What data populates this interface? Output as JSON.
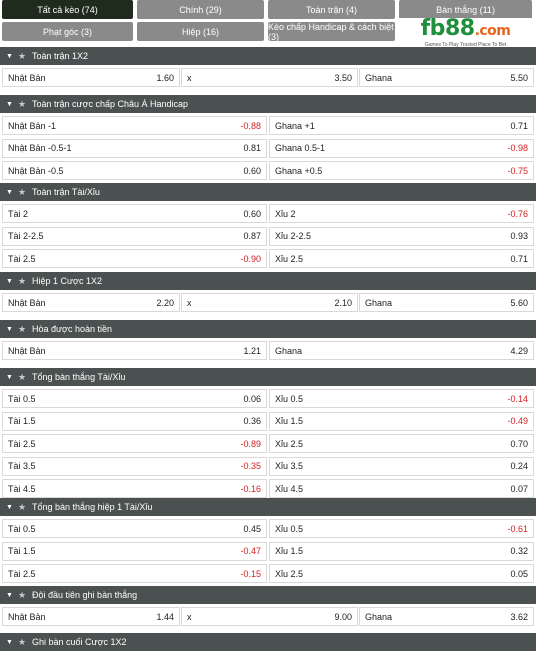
{
  "tabs": [
    {
      "label": "Tất cả kèo (74)",
      "active": true
    },
    {
      "label": "Chính (29)"
    },
    {
      "label": "Toàn trận (4)"
    },
    {
      "label": "Bàn thắng (11)"
    },
    {
      "label": "Phạt góc (3)"
    },
    {
      "label": "Hiệp (16)"
    },
    {
      "label": "Kèo chấp Handicap & cách biệt (3)"
    }
  ],
  "logo": {
    "text_fb": "fb",
    "text_88": "88",
    "text_dot": ".com",
    "tagline": "Games To Play   Trusted Place To Bet"
  },
  "sections": [
    {
      "title": "Toàn trận 1X2",
      "rows": [
        [
          {
            "label": "Nhật Bản",
            "odd": "1.60"
          },
          {
            "label": "x",
            "odd": "3.50"
          },
          {
            "label": "Ghana",
            "odd": "5.50"
          }
        ]
      ]
    },
    {
      "title": "Toàn trận cược chấp Châu Á Handicap",
      "rows": [
        [
          {
            "label": "Nhật Bản -1",
            "odd": "-0.88"
          },
          {
            "label": "Ghana +1",
            "odd": "0.71"
          }
        ],
        [
          {
            "label": "Nhật Bản -0.5-1",
            "odd": "0.81"
          },
          {
            "label": "Ghana 0.5-1",
            "odd": "-0.98"
          }
        ],
        [
          {
            "label": "Nhật Bản -0.5",
            "odd": "0.60"
          },
          {
            "label": "Ghana +0.5",
            "odd": "-0.75"
          }
        ]
      ]
    },
    {
      "title": "Toàn trận Tài/Xỉu",
      "rows": [
        [
          {
            "label": "Tài 2",
            "odd": "0.60"
          },
          {
            "label": "Xỉu 2",
            "odd": "-0.76"
          }
        ],
        [
          {
            "label": "Tài 2-2.5",
            "odd": "0.87"
          },
          {
            "label": "Xỉu 2-2.5",
            "odd": "0.93"
          }
        ],
        [
          {
            "label": "Tài 2.5",
            "odd": "-0.90"
          },
          {
            "label": "Xỉu 2.5",
            "odd": "0.71"
          }
        ]
      ]
    },
    {
      "title": "Hiệp 1 Cược 1X2",
      "rows": [
        [
          {
            "label": "Nhật Bản",
            "odd": "2.20"
          },
          {
            "label": "x",
            "odd": "2.10"
          },
          {
            "label": "Ghana",
            "odd": "5.60"
          }
        ]
      ]
    },
    {
      "title": "Hòa được hoàn tiền",
      "rows": [
        [
          {
            "label": "Nhật Bản",
            "odd": "1.21"
          },
          {
            "label": "Ghana",
            "odd": "4.29"
          }
        ]
      ]
    },
    {
      "title": "Tổng bàn thắng Tài/Xỉu",
      "rows": [
        [
          {
            "label": "Tài 0.5",
            "odd": "0.06"
          },
          {
            "label": "Xỉu 0.5",
            "odd": "-0.14"
          }
        ],
        [
          {
            "label": "Tài 1.5",
            "odd": "0.36"
          },
          {
            "label": "Xỉu 1.5",
            "odd": "-0.49"
          }
        ],
        [
          {
            "label": "Tài 2.5",
            "odd": "-0.89"
          },
          {
            "label": "Xỉu 2.5",
            "odd": "0.70"
          }
        ],
        [
          {
            "label": "Tài 3.5",
            "odd": "-0.35"
          },
          {
            "label": "Xỉu 3.5",
            "odd": "0.24"
          }
        ],
        [
          {
            "label": "Tài 4.5",
            "odd": "-0.16"
          },
          {
            "label": "Xỉu 4.5",
            "odd": "0.07"
          }
        ]
      ]
    },
    {
      "title": "Tổng bàn thắng hiệp 1 Tài/Xỉu",
      "rows": [
        [
          {
            "label": "Tài 0.5",
            "odd": "0.45"
          },
          {
            "label": "Xỉu 0.5",
            "odd": "-0.61"
          }
        ],
        [
          {
            "label": "Tài 1.5",
            "odd": "-0.47"
          },
          {
            "label": "Xỉu 1.5",
            "odd": "0.32"
          }
        ],
        [
          {
            "label": "Tài 2.5",
            "odd": "-0.15"
          },
          {
            "label": "Xỉu 2.5",
            "odd": "0.05"
          }
        ]
      ]
    },
    {
      "title": "Đội đầu tiên ghi bàn thắng",
      "rows": [
        [
          {
            "label": "Nhật Bản",
            "odd": "1.44"
          },
          {
            "label": "x",
            "odd": "9.00"
          },
          {
            "label": "Ghana",
            "odd": "3.62"
          }
        ]
      ]
    },
    {
      "title": "Ghi bàn cuối Cược 1X2",
      "rows": []
    }
  ],
  "colors": {
    "header_bg": "#4b5150",
    "tab_bg": "#8a8a8a",
    "tab_active_bg": "#1f2b1d",
    "negative_odd": "#d31f1f"
  }
}
